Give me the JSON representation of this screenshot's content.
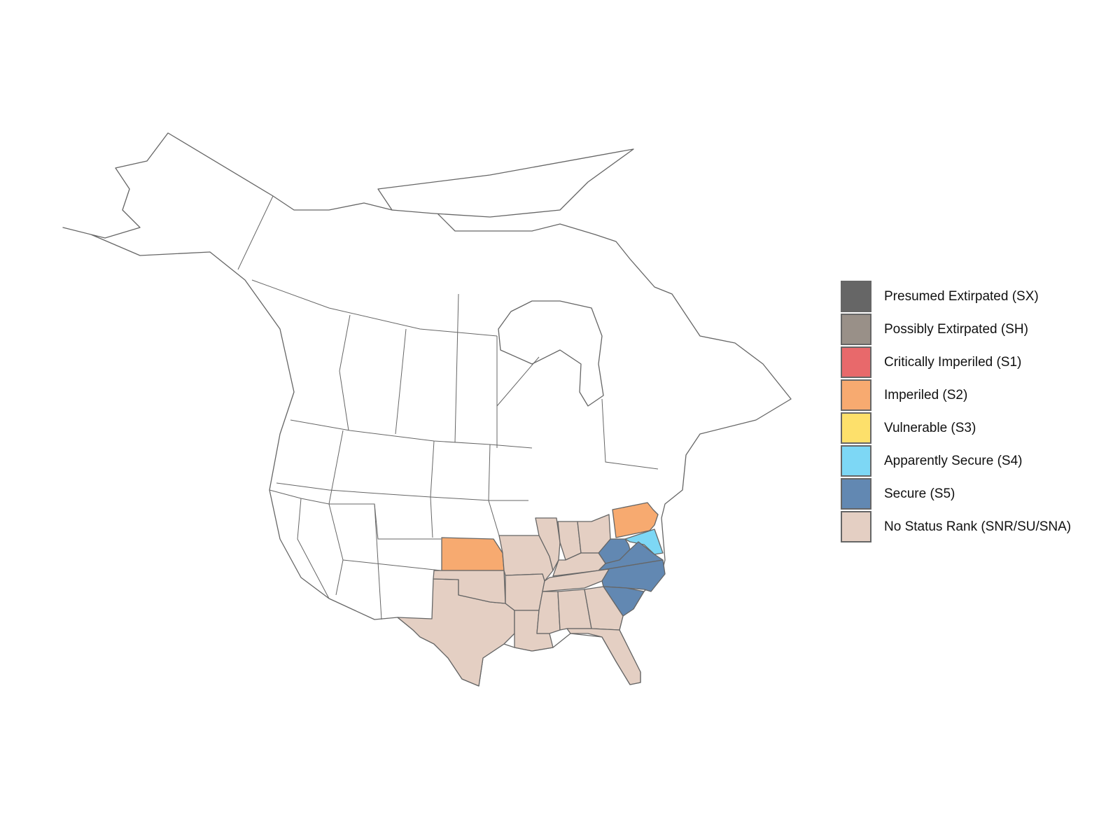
{
  "legend": {
    "items": [
      {
        "code": "SX",
        "label": "Presumed Extirpated (SX)",
        "color": "#666666"
      },
      {
        "code": "SH",
        "label": "Possibly Extirpated (SH)",
        "color": "#999088"
      },
      {
        "code": "S1",
        "label": "Critically Imperiled (S1)",
        "color": "#E8696B"
      },
      {
        "code": "S2",
        "label": "Imperiled (S2)",
        "color": "#F7AA70"
      },
      {
        "code": "S3",
        "label": "Vulnerable (S3)",
        "color": "#FDE06B"
      },
      {
        "code": "S4",
        "label": "Apparently Secure (S4)",
        "color": "#7DD7F5"
      },
      {
        "code": "S5",
        "label": "Secure (S5)",
        "color": "#6288B2"
      },
      {
        "code": "SNR",
        "label": "No Status Rank (SNR/SU/SNA)",
        "color": "#E4CFC3"
      }
    ]
  },
  "map": {
    "background_fill": "#FFFFFF",
    "border_color": "#666666",
    "regions": [
      {
        "id": "KS",
        "status": "S2"
      },
      {
        "id": "PA",
        "status": "S2"
      },
      {
        "id": "MD-DE",
        "status": "S4"
      },
      {
        "id": "WV",
        "status": "S5"
      },
      {
        "id": "VA",
        "status": "S5"
      },
      {
        "id": "NC",
        "status": "S5"
      },
      {
        "id": "SC",
        "status": "S5"
      },
      {
        "id": "TX",
        "status": "SNR"
      },
      {
        "id": "OK",
        "status": "SNR"
      },
      {
        "id": "MO",
        "status": "SNR"
      },
      {
        "id": "AR",
        "status": "SNR"
      },
      {
        "id": "LA",
        "status": "SNR"
      },
      {
        "id": "IL",
        "status": "SNR"
      },
      {
        "id": "IN",
        "status": "SNR"
      },
      {
        "id": "OH",
        "status": "SNR"
      },
      {
        "id": "KY",
        "status": "SNR"
      },
      {
        "id": "TN",
        "status": "SNR"
      },
      {
        "id": "MS",
        "status": "SNR"
      },
      {
        "id": "AL",
        "status": "SNR"
      },
      {
        "id": "GA",
        "status": "SNR"
      },
      {
        "id": "FL",
        "status": "SNR"
      }
    ]
  }
}
